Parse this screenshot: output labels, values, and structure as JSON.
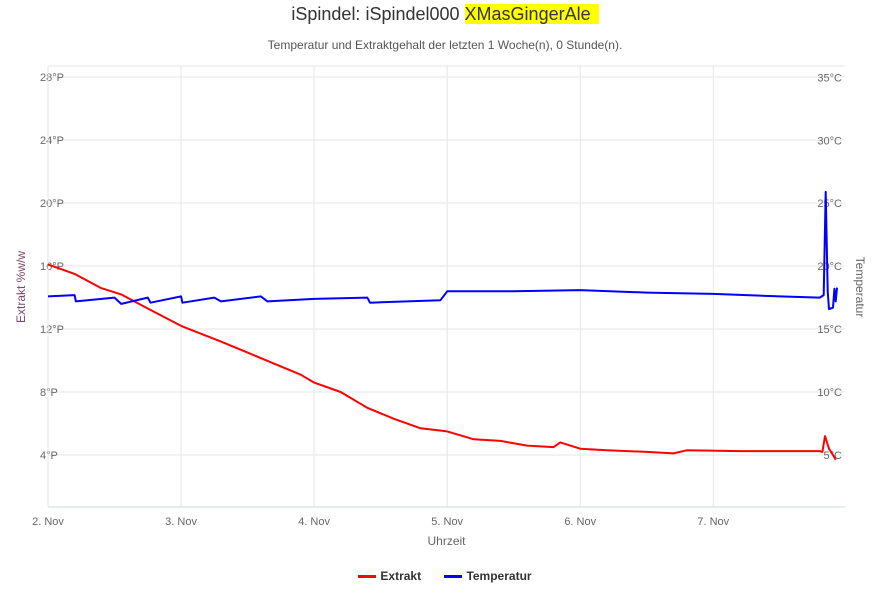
{
  "chart_data": {
    "type": "line",
    "title_prefix": "iSpindel: iSpindel000",
    "title_highlight": "XMasGingerAle",
    "subtitle": "Temperatur und Extraktgehalt der letzten 1 Woche(n), 0 Stunde(n).",
    "xlabel": "Uhrzeit",
    "ylabel_left": "Extrakt %w/w",
    "ylabel_right": "Temperatur",
    "x_ticks": [
      "2. Nov",
      "3. Nov",
      "4. Nov",
      "5. Nov",
      "6. Nov",
      "7. Nov"
    ],
    "y_left_ticks": [
      "4°P",
      "8°P",
      "12°P",
      "16°P",
      "20°P",
      "24°P",
      "28°P"
    ],
    "y_left_values": [
      4,
      8,
      12,
      16,
      20,
      24,
      28
    ],
    "y_right_ticks": [
      "5°C",
      "10°C",
      "15°C",
      "20°C",
      "25°C",
      "30°C",
      "35°C"
    ],
    "y_right_values": [
      5,
      10,
      15,
      20,
      25,
      30,
      35
    ],
    "x_unit": "days since 2. Nov",
    "xlim": [
      0,
      5.99
    ],
    "ylim_left": [
      0.7,
      28.7
    ],
    "ylim_right": [
      0.87,
      35.9
    ],
    "series": [
      {
        "name": "Extrakt",
        "axis": "left",
        "color": "#ff0000",
        "points": [
          [
            0,
            16.1
          ],
          [
            0.2,
            15.5
          ],
          [
            0.4,
            14.6
          ],
          [
            0.55,
            14.2
          ],
          [
            0.75,
            13.3
          ],
          [
            1.0,
            12.2
          ],
          [
            1.3,
            11.2
          ],
          [
            1.5,
            10.5
          ],
          [
            1.7,
            9.8
          ],
          [
            1.9,
            9.1
          ],
          [
            2.0,
            8.6
          ],
          [
            2.2,
            8.0
          ],
          [
            2.4,
            7.0
          ],
          [
            2.6,
            6.3
          ],
          [
            2.8,
            5.7
          ],
          [
            3.0,
            5.5
          ],
          [
            3.2,
            5.0
          ],
          [
            3.4,
            4.9
          ],
          [
            3.6,
            4.6
          ],
          [
            3.8,
            4.5
          ],
          [
            3.85,
            4.8
          ],
          [
            4.0,
            4.4
          ],
          [
            4.2,
            4.3
          ],
          [
            4.5,
            4.2
          ],
          [
            4.7,
            4.1
          ],
          [
            4.8,
            4.3
          ],
          [
            5.2,
            4.25
          ],
          [
            5.8,
            4.25
          ],
          [
            5.82,
            4.2
          ],
          [
            5.84,
            5.2
          ],
          [
            5.87,
            4.4
          ],
          [
            5.9,
            4.0
          ],
          [
            5.92,
            3.7
          ]
        ]
      },
      {
        "name": "Temperatur",
        "axis": "right",
        "color": "#0000ff",
        "points": [
          [
            0,
            17.6
          ],
          [
            0.2,
            17.7
          ],
          [
            0.21,
            17.2
          ],
          [
            0.5,
            17.5
          ],
          [
            0.55,
            17.0
          ],
          [
            0.75,
            17.5
          ],
          [
            0.77,
            17.1
          ],
          [
            1.0,
            17.6
          ],
          [
            1.01,
            17.1
          ],
          [
            1.25,
            17.5
          ],
          [
            1.3,
            17.2
          ],
          [
            1.6,
            17.6
          ],
          [
            1.65,
            17.2
          ],
          [
            2.0,
            17.4
          ],
          [
            2.4,
            17.5
          ],
          [
            2.42,
            17.1
          ],
          [
            2.95,
            17.3
          ],
          [
            3.0,
            18.0
          ],
          [
            3.5,
            18.0
          ],
          [
            4.0,
            18.1
          ],
          [
            4.5,
            17.9
          ],
          [
            5.0,
            17.8
          ],
          [
            5.5,
            17.6
          ],
          [
            5.8,
            17.5
          ],
          [
            5.83,
            17.7
          ],
          [
            5.845,
            25.9
          ],
          [
            5.86,
            18.0
          ],
          [
            5.87,
            16.6
          ],
          [
            5.9,
            16.7
          ],
          [
            5.91,
            18.2
          ],
          [
            5.92,
            17.2
          ],
          [
            5.93,
            18.3
          ]
        ]
      }
    ]
  }
}
